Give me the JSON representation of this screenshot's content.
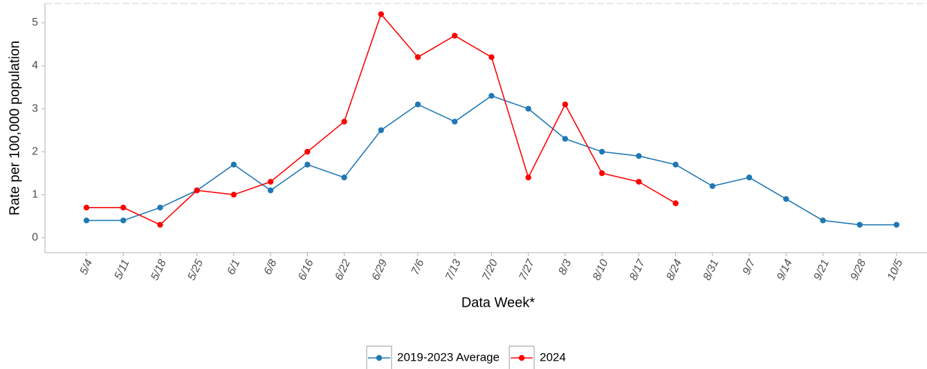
{
  "chart_data": {
    "type": "line",
    "x_label": "Data Week*",
    "y_label": "Rate per 100,000 population",
    "categories": [
      "5/4",
      "5/11",
      "5/18",
      "5/25",
      "6/1",
      "6/8",
      "6/16",
      "6/22",
      "6/29",
      "7/6",
      "7/13",
      "7/20",
      "7/27",
      "8/3",
      "8/10",
      "8/17",
      "8/24",
      "8/31",
      "9/7",
      "9/14",
      "9/21",
      "9/28",
      "10/5"
    ],
    "series": [
      {
        "name": "2019-2023 Average",
        "color": "#1f78b4",
        "values": [
          0.4,
          0.4,
          0.7,
          1.1,
          1.7,
          1.1,
          1.7,
          1.4,
          2.5,
          3.1,
          2.7,
          3.3,
          3.0,
          2.3,
          2.0,
          1.9,
          1.7,
          1.2,
          1.4,
          0.9,
          0.4,
          0.3,
          0.3
        ]
      },
      {
        "name": "2024",
        "color": "#ff0000",
        "values": [
          0.7,
          0.7,
          0.3,
          1.1,
          1.0,
          1.3,
          2.0,
          2.7,
          5.2,
          4.2,
          4.7,
          4.2,
          1.4,
          3.1,
          1.5,
          1.3,
          0.8,
          null,
          null,
          null,
          null,
          null,
          null
        ]
      }
    ],
    "ylim": [
      -0.35,
      5.45
    ],
    "yticks": [
      0,
      1,
      2,
      3,
      4,
      5
    ],
    "grid": false,
    "legend": "bottom"
  }
}
